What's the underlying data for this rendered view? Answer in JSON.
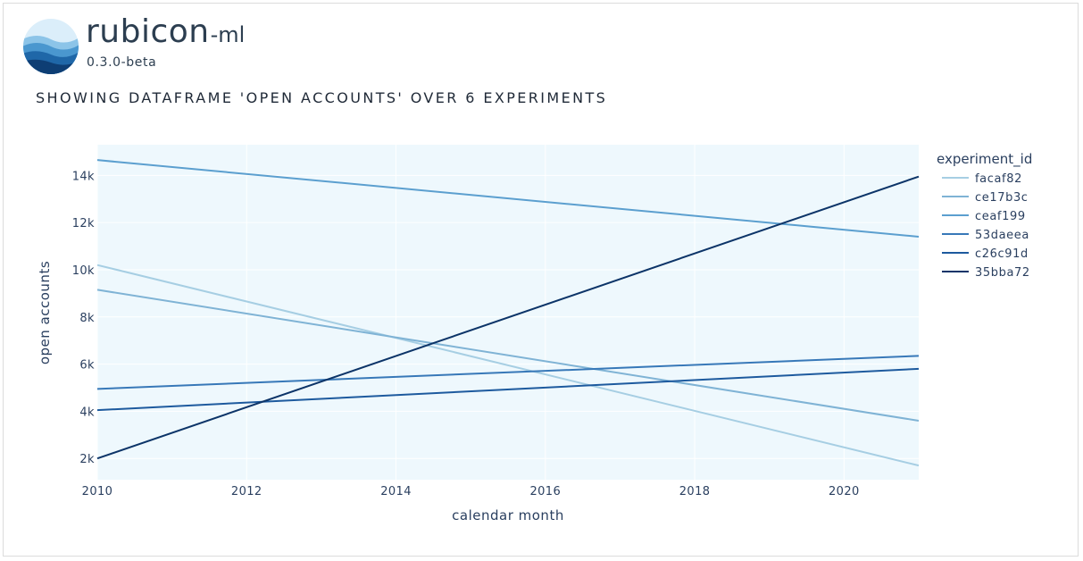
{
  "app": {
    "brand_name": "rubicon",
    "brand_suffix": "-ml",
    "version": "0.3.0-beta"
  },
  "chart_title": "SHOWING DATAFRAME 'OPEN ACCOUNTS' OVER 6 EXPERIMENTS",
  "chart_data": {
    "type": "line",
    "title": "SHOWING DATAFRAME 'OPEN ACCOUNTS' OVER 6 EXPERIMENTS",
    "xlabel": "calendar month",
    "ylabel": "open accounts",
    "xlim": [
      2010,
      2021
    ],
    "ylim": [
      1100,
      15300
    ],
    "x_ticks": [
      2010,
      2012,
      2014,
      2016,
      2018,
      2020
    ],
    "x_tick_labels": [
      "2010",
      "2012",
      "2014",
      "2016",
      "2018",
      "2020"
    ],
    "y_ticks": [
      2000,
      4000,
      6000,
      8000,
      10000,
      12000,
      14000
    ],
    "y_tick_labels": [
      "2k",
      "4k",
      "6k",
      "8k",
      "10k",
      "12k",
      "14k"
    ],
    "grid": true,
    "legend_title": "experiment_id",
    "legend_position": "right",
    "series": [
      {
        "name": "facaf82",
        "color": "#a6cee3",
        "points": [
          [
            2010,
            10200
          ],
          [
            2021,
            1700
          ]
        ]
      },
      {
        "name": "ce17b3c",
        "color": "#7fb3d5",
        "points": [
          [
            2010,
            9150
          ],
          [
            2021,
            3600
          ]
        ]
      },
      {
        "name": "ceaf199",
        "color": "#5b9fcf",
        "points": [
          [
            2010,
            14650
          ],
          [
            2021,
            11400
          ]
        ]
      },
      {
        "name": "53daeea",
        "color": "#3778b8",
        "points": [
          [
            2010,
            4950
          ],
          [
            2021,
            6350
          ]
        ]
      },
      {
        "name": "c26c91d",
        "color": "#1d5a9e",
        "points": [
          [
            2010,
            4050
          ],
          [
            2021,
            5800
          ]
        ]
      },
      {
        "name": "35bba72",
        "color": "#0c3468",
        "points": [
          [
            2010,
            2000
          ],
          [
            2021,
            13950
          ]
        ]
      }
    ]
  }
}
